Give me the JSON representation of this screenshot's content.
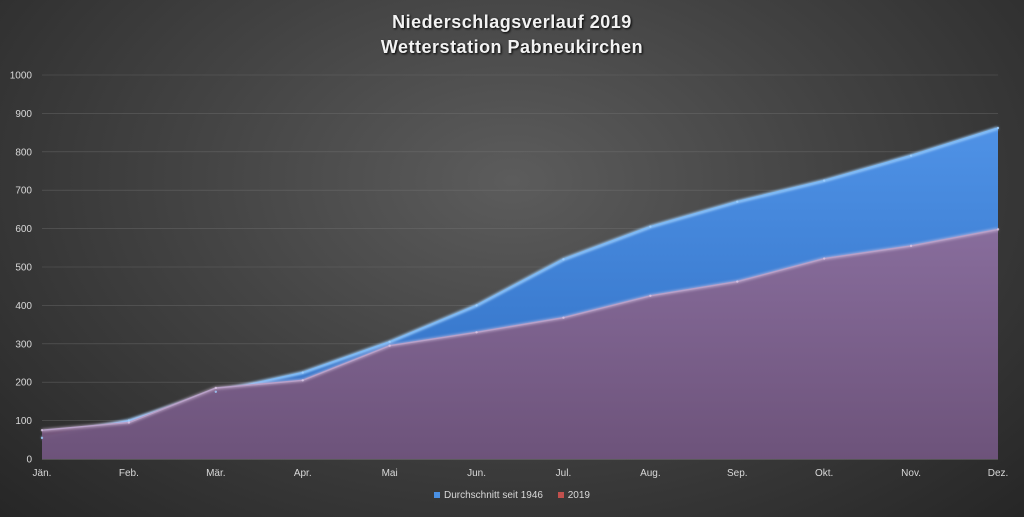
{
  "chart_data": {
    "type": "area",
    "title": "Niederschlagsverlauf 2019",
    "subtitle": "Wetterstation Pabneukirchen",
    "categories": [
      "Jän.",
      "Feb.",
      "Mär.",
      "Apr.",
      "Mai",
      "Jun.",
      "Jul.",
      "Aug.",
      "Sep.",
      "Okt.",
      "Nov.",
      "Dez."
    ],
    "ylim": [
      0,
      1000
    ],
    "yticks": [
      0,
      100,
      200,
      300,
      400,
      500,
      600,
      700,
      800,
      900,
      1000
    ],
    "grid": true,
    "legend_position": "bottom",
    "series": [
      {
        "name": "Durchschnitt seit 1946",
        "color": "#4a90e2",
        "values": [
          55,
          100,
          175,
          225,
          305,
          400,
          520,
          605,
          670,
          725,
          790,
          862
        ]
      },
      {
        "name": "2019",
        "color": "#c0504d",
        "values": [
          75,
          95,
          185,
          205,
          295,
          330,
          368,
          425,
          462,
          522,
          555,
          598
        ]
      }
    ]
  }
}
